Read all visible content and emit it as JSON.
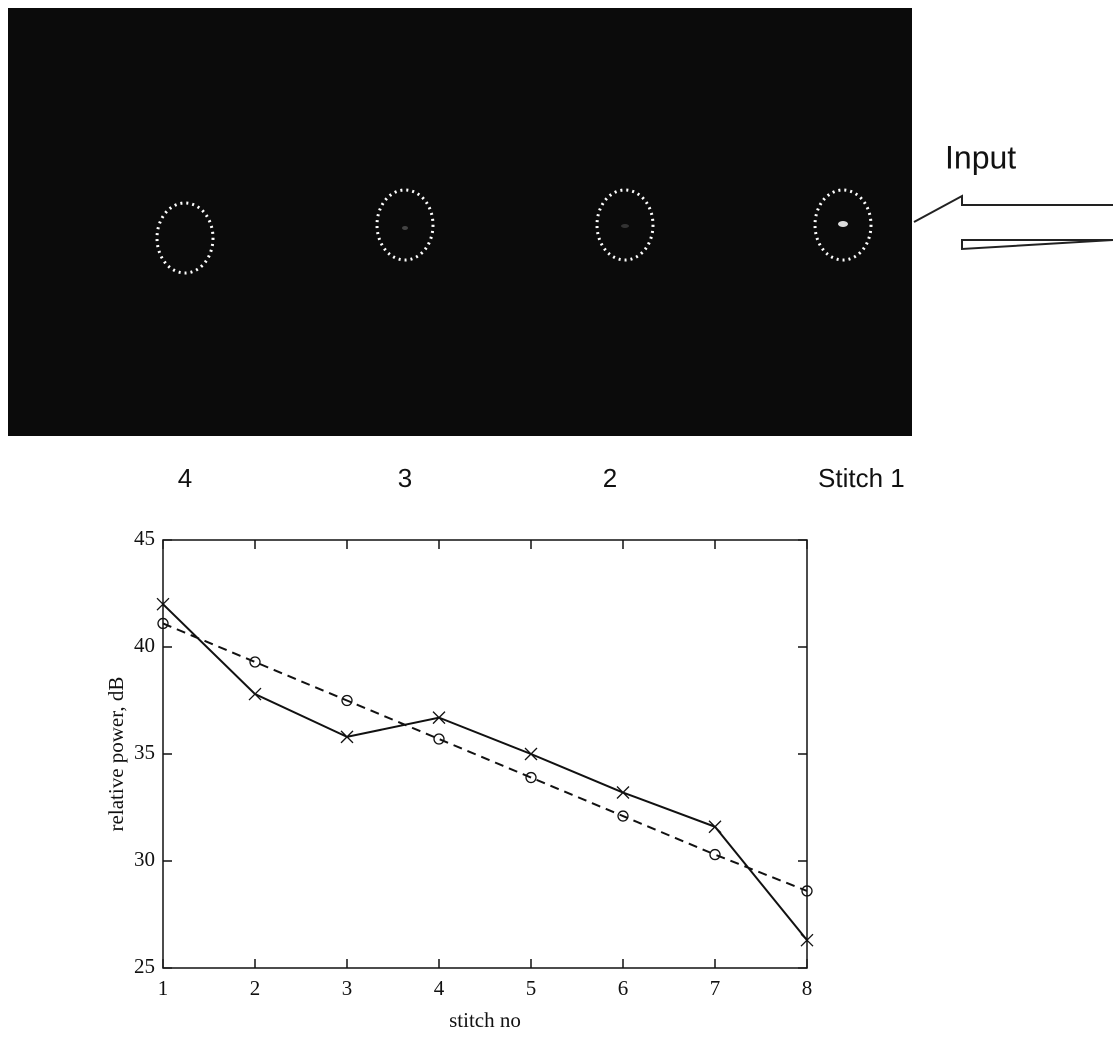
{
  "image": {
    "input_label": "Input",
    "stitch_labels": [
      "4",
      "3",
      "2",
      "Stitch 1"
    ]
  },
  "chart_data": {
    "type": "line",
    "x_label": "stitch no",
    "y_label": "relative power, dB",
    "x": [
      1,
      2,
      3,
      4,
      5,
      6,
      7,
      8
    ],
    "series": [
      {
        "color": "#111111",
        "line_style": "solid",
        "marker": "x",
        "values": [
          42.0,
          37.8,
          35.8,
          36.7,
          35.0,
          33.2,
          31.6,
          26.3
        ]
      },
      {
        "color": "#111111",
        "line_style": "dashed",
        "marker": "circle",
        "values": [
          41.1,
          39.3,
          37.5,
          35.7,
          33.9,
          32.1,
          30.3,
          28.6
        ]
      }
    ],
    "xlim": [
      1,
      8
    ],
    "ylim": [
      25,
      45
    ],
    "xticks": [
      1,
      2,
      3,
      4,
      5,
      6,
      7,
      8
    ],
    "yticks": [
      25,
      30,
      35,
      40,
      45
    ],
    "grid": false
  }
}
